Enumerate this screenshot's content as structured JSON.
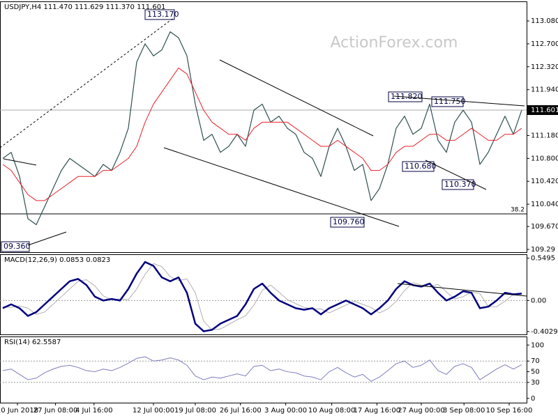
{
  "chart_data": [
    {
      "type": "line",
      "title": "USDJPY,H4  111.470 111.629 111.370 111.601",
      "watermark": "ActionForex.com",
      "ylim": [
        109.244,
        113.404
      ],
      "yticks": [
        {
          "value": 113.08,
          "label": "113.080"
        },
        {
          "value": 112.7,
          "label": "112.700"
        },
        {
          "value": 112.32,
          "label": "112.320"
        },
        {
          "value": 111.94,
          "label": "111.940"
        },
        {
          "value": 111.56,
          "label": "111.560"
        },
        {
          "value": 111.18,
          "label": "111.180"
        },
        {
          "value": 110.8,
          "label": "110.800"
        },
        {
          "value": 110.42,
          "label": "110.420"
        },
        {
          "value": 110.04,
          "label": "110.040"
        },
        {
          "value": 109.67,
          "label": "109.670"
        },
        109.29
      ],
      "current_price": 111.601,
      "fib_level": {
        "value": 109.88,
        "label": "38.2"
      },
      "annotations": [
        "113.170",
        "111.820",
        "111.750",
        "110.680",
        "110.370",
        "109.760",
        "09.360"
      ],
      "series": [
        {
          "name": "USDJPY",
          "color": "#2f4f4f",
          "values": [
            110.8,
            110.9,
            110.5,
            109.8,
            109.7,
            110.0,
            110.3,
            110.6,
            110.8,
            110.7,
            110.6,
            110.5,
            110.7,
            110.6,
            110.9,
            111.3,
            112.4,
            112.7,
            112.5,
            112.6,
            112.9,
            112.8,
            112.5,
            111.7,
            111.1,
            111.2,
            110.9,
            111.0,
            111.2,
            111.0,
            111.6,
            111.7,
            111.4,
            111.5,
            111.3,
            111.2,
            110.9,
            110.8,
            110.5,
            111.0,
            111.3,
            111.0,
            110.6,
            110.7,
            110.1,
            110.3,
            110.7,
            111.3,
            111.5,
            111.2,
            111.3,
            111.7,
            111.1,
            110.9,
            111.4,
            111.6,
            111.4,
            110.7,
            110.9,
            111.2,
            111.5,
            111.2,
            111.6
          ],
          "width": 1.2
        },
        {
          "name": "MA",
          "color": "#e8202a",
          "values": [
            110.7,
            110.6,
            110.4,
            110.2,
            110.1,
            110.1,
            110.2,
            110.3,
            110.4,
            110.5,
            110.5,
            110.5,
            110.6,
            110.6,
            110.7,
            110.8,
            111.0,
            111.4,
            111.7,
            111.9,
            112.1,
            112.3,
            112.2,
            111.9,
            111.6,
            111.4,
            111.3,
            111.2,
            111.2,
            111.1,
            111.3,
            111.4,
            111.4,
            111.4,
            111.4,
            111.3,
            111.2,
            111.1,
            111.0,
            111.0,
            111.1,
            111.0,
            110.9,
            110.8,
            110.6,
            110.6,
            110.7,
            110.9,
            111.0,
            111.0,
            111.1,
            111.2,
            111.2,
            111.1,
            111.1,
            111.2,
            111.3,
            111.2,
            111.1,
            111.1,
            111.2,
            111.2,
            111.3
          ],
          "width": 1
        }
      ]
    },
    {
      "type": "line",
      "title": "MACD(12,26,9) 0.0853 0.0823",
      "ylim": [
        -0.44,
        0.6
      ],
      "yticks": [
        0.5495,
        {
          "value": 0,
          "label": "0.00"
        },
        -0.4029
      ],
      "levels": [
        0
      ],
      "series": [
        {
          "name": "Signal",
          "color": "#b0b0b0",
          "values": [
            -0.08,
            -0.09,
            -0.07,
            -0.1,
            -0.18,
            -0.15,
            -0.05,
            0.05,
            0.15,
            0.25,
            0.27,
            0.19,
            0.06,
            0.01,
            0.02,
            0.01,
            0.15,
            0.34,
            0.48,
            0.44,
            0.31,
            0.26,
            0.28,
            0.1,
            -0.27,
            -0.38,
            -0.37,
            -0.31,
            -0.25,
            -0.2,
            -0.06,
            0.13,
            0.2,
            0.11,
            0.01,
            -0.04,
            -0.09,
            -0.11,
            -0.11,
            -0.16,
            -0.11,
            -0.06,
            -0.01,
            -0.05,
            -0.09,
            -0.16,
            -0.11,
            -0.01,
            0.13,
            0.23,
            0.2,
            0.18,
            0.21,
            0.11,
            0.02,
            0.05,
            0.11,
            0.09,
            -0.08,
            -0.08,
            -0.01,
            0.08,
            0.08
          ],
          "width": 1
        },
        {
          "name": "MACD",
          "color": "#00007f",
          "values": [
            -0.1,
            -0.05,
            -0.1,
            -0.2,
            -0.15,
            -0.05,
            0.05,
            0.15,
            0.25,
            0.28,
            0.2,
            0.05,
            0.0,
            0.02,
            0.0,
            0.15,
            0.35,
            0.5,
            0.45,
            0.3,
            0.25,
            0.3,
            0.1,
            -0.3,
            -0.4,
            -0.38,
            -0.3,
            -0.25,
            -0.2,
            -0.05,
            0.15,
            0.22,
            0.1,
            0.0,
            -0.05,
            -0.1,
            -0.12,
            -0.1,
            -0.18,
            -0.1,
            -0.05,
            0.0,
            -0.05,
            -0.1,
            -0.18,
            -0.1,
            0.0,
            0.15,
            0.25,
            0.2,
            0.18,
            0.22,
            0.1,
            0.0,
            0.05,
            0.12,
            0.1,
            -0.1,
            -0.08,
            0.0,
            0.1,
            0.08,
            0.09
          ],
          "width": 2.5
        }
      ]
    },
    {
      "type": "line",
      "title": "RSI(14) 62.5587",
      "ylim": [
        -8,
        116
      ],
      "yticks": [
        100,
        70,
        50,
        30,
        0
      ],
      "levels": [
        70,
        30
      ],
      "xticks": [
        {
          "value": 1.75,
          "label": "20 Jun 2018"
        },
        {
          "value": 6.3,
          "label": "27 Jun 08:00"
        },
        {
          "value": 10.9,
          "label": "4 Jul 16:00"
        },
        {
          "value": 18,
          "label": "12 Jul 00:00"
        },
        {
          "value": 23,
          "label": "19 Jul 08:00"
        },
        {
          "value": 28.4,
          "label": "26 Jul 16:00"
        },
        {
          "value": 33.8,
          "label": "3 Aug 00:00"
        },
        {
          "value": 39.3,
          "label": "10 Aug 08:00"
        },
        {
          "value": 44.7,
          "label": "17 Aug 16:00"
        },
        {
          "value": 50,
          "label": "27 Aug 00:00"
        },
        {
          "value": 55.1,
          "label": "3 Sep 08:00"
        },
        {
          "value": 60.5,
          "label": "10 Sep 16:00"
        }
      ],
      "series": [
        {
          "name": "RSI",
          "color": "#7b7bbf",
          "values": [
            52,
            55,
            45,
            35,
            38,
            48,
            55,
            60,
            62,
            58,
            52,
            50,
            55,
            52,
            58,
            66,
            75,
            78,
            70,
            72,
            76,
            72,
            62,
            42,
            35,
            40,
            38,
            42,
            46,
            42,
            60,
            62,
            52,
            55,
            50,
            48,
            42,
            40,
            35,
            50,
            58,
            48,
            40,
            45,
            32,
            40,
            52,
            65,
            70,
            58,
            62,
            72,
            52,
            45,
            60,
            65,
            58,
            35,
            45,
            55,
            63,
            55,
            63
          ],
          "width": 1
        }
      ]
    }
  ]
}
